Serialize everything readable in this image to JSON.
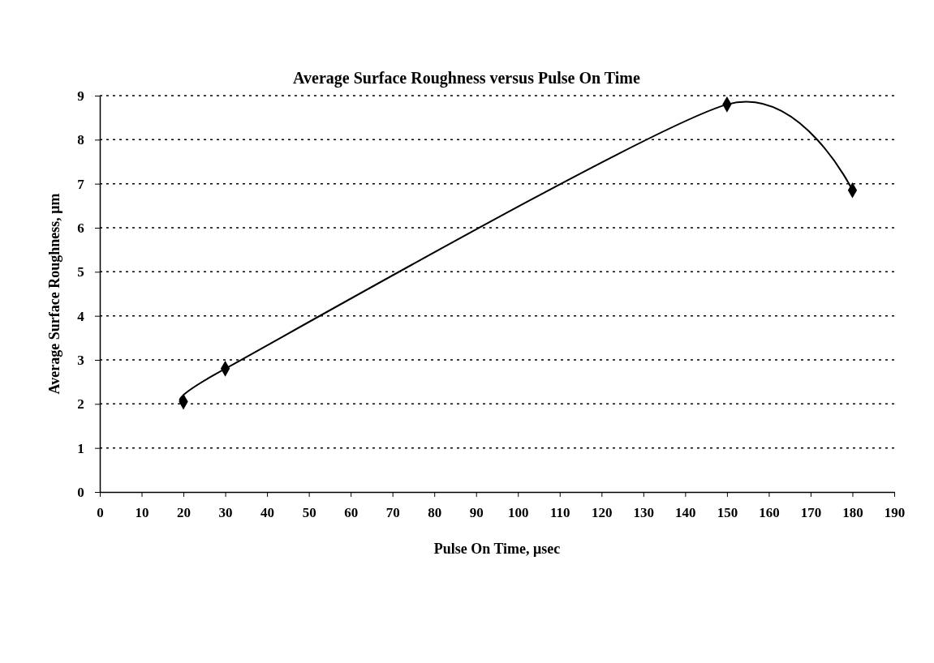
{
  "chart_data": {
    "type": "line",
    "title": "Average Surface Roughness versus Pulse On Time",
    "xlabel": "Pulse On Time, μsec",
    "ylabel": "Average Surface Roughness, μm",
    "x": [
      20,
      30,
      150,
      180
    ],
    "series": [
      {
        "color": "#000000",
        "values": [
          2.05,
          2.8,
          8.8,
          6.85
        ]
      }
    ],
    "xlim": [
      0,
      190
    ],
    "xticks": [
      0,
      10,
      20,
      30,
      40,
      50,
      60,
      70,
      80,
      90,
      100,
      110,
      120,
      130,
      140,
      150,
      160,
      170,
      180,
      190
    ],
    "ylim": [
      0,
      9
    ],
    "yticks": [
      0,
      1,
      2,
      3,
      4,
      5,
      6,
      7,
      8,
      9
    ],
    "grid": "y",
    "marker": "diamond",
    "line_style": "solid"
  }
}
